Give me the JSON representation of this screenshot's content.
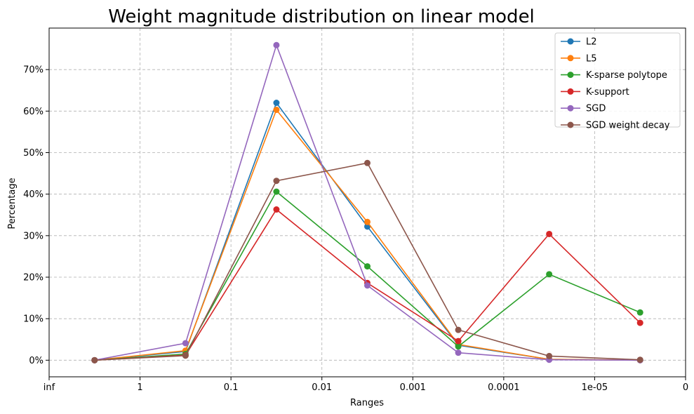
{
  "chart_data": {
    "type": "line",
    "title": "Weight magnitude distribution on linear model",
    "xlabel": "Ranges",
    "ylabel": "Percentage",
    "x_tick_labels": [
      "inf",
      "1",
      "0.1",
      "0.01",
      "0.001",
      "0.0001",
      "1e-05",
      "0"
    ],
    "y_ticks": [
      0,
      10,
      20,
      30,
      40,
      50,
      60,
      70
    ],
    "y_tick_labels": [
      "0%",
      "10%",
      "20%",
      "30%",
      "40%",
      "50%",
      "60%",
      "70%"
    ],
    "ylim": [
      -4,
      80
    ],
    "grid": true,
    "legend_position": "top-right",
    "series": [
      {
        "name": "L2",
        "color": "#1f77b4",
        "values": [
          0,
          2.1,
          62.0,
          32.2,
          3.6,
          0.2,
          0.0
        ]
      },
      {
        "name": "L5",
        "color": "#ff7f0e",
        "values": [
          0,
          2.3,
          60.3,
          33.3,
          3.8,
          0.2,
          0.0
        ]
      },
      {
        "name": "K-sparse polytope",
        "color": "#2ca02c",
        "values": [
          0,
          1.5,
          40.6,
          22.6,
          3.3,
          20.7,
          11.5
        ]
      },
      {
        "name": "K-support",
        "color": "#d62728",
        "values": [
          0,
          1.2,
          36.3,
          18.6,
          4.6,
          30.4,
          9.0
        ]
      },
      {
        "name": "SGD",
        "color": "#9467bd",
        "values": [
          0,
          4.1,
          75.9,
          18.0,
          1.8,
          0.1,
          0.0
        ]
      },
      {
        "name": "SGD weight decay",
        "color": "#8c564b",
        "values": [
          0,
          1.1,
          43.2,
          47.5,
          7.3,
          1.0,
          0.1
        ]
      }
    ]
  }
}
